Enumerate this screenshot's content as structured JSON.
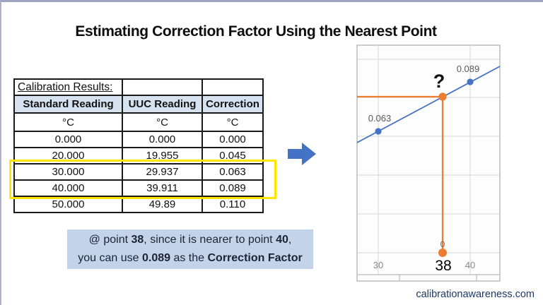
{
  "slide": {
    "title": "Estimating Correction Factor Using the Nearest Point",
    "footer": "calibrationawareness.com"
  },
  "table": {
    "caption": "Calibration Results:",
    "columns": [
      "Standard Reading",
      "UUC Reading",
      "Correction"
    ],
    "units": [
      "°C",
      "°C",
      "°C"
    ],
    "rows": [
      [
        "0.000",
        "0.000",
        "0.000"
      ],
      [
        "20.000",
        "19.955",
        "0.045"
      ],
      [
        "30.000",
        "29.937",
        "0.063"
      ],
      [
        "40.000",
        "39.911",
        "0.089"
      ],
      [
        "50.000",
        "49.89",
        "0.110"
      ]
    ],
    "highlighted_standard_points": [
      "30.000",
      "40.000"
    ],
    "highlight_color": "#FFE500"
  },
  "note": {
    "lines": [
      [
        {
          "t": "@ point "
        },
        {
          "t": "38",
          "b": true
        },
        {
          "t": ", since it is nearer to point "
        },
        {
          "t": "40",
          "b": true
        },
        {
          "t": ","
        }
      ],
      [
        {
          "t": "you can use "
        },
        {
          "t": "0.089",
          "b": true
        },
        {
          "t": " as the "
        },
        {
          "t": "Correction Factor",
          "b": true
        }
      ]
    ],
    "background": "#C3D3EA"
  },
  "chart_data": {
    "type": "line",
    "title": "",
    "xlabel": "",
    "ylabel": "",
    "x_range_visible": [
      27.5,
      43.5
    ],
    "grid": true,
    "x_ticks": [
      {
        "label": "30",
        "emphasis": false
      },
      {
        "label": "38",
        "emphasis": true
      },
      {
        "label": "40",
        "emphasis": false
      }
    ],
    "series": [
      {
        "name": "correction-vs-standard-reading",
        "color": "#4472C4",
        "points": [
          {
            "x": 30,
            "y": 0.063,
            "label": "0.063"
          },
          {
            "x": 40,
            "y": 0.089,
            "label": "0.089"
          }
        ]
      },
      {
        "name": "nearest-point-estimate",
        "color": "#ED7D31",
        "points": [
          {
            "x": 38,
            "y": null,
            "label": "?"
          },
          {
            "x": 38,
            "y": 0,
            "label": "0"
          }
        ]
      }
    ],
    "annotations": {
      "question_mark": "?",
      "zero_label": "0"
    },
    "colors": {
      "blue_series": "#4472C4",
      "orange_series": "#ED7D31",
      "gridline": "#D6D6D6",
      "axis_label_gray": "#8A8A8A"
    }
  },
  "arrow": {
    "color": "#4472C4",
    "direction": "right"
  }
}
